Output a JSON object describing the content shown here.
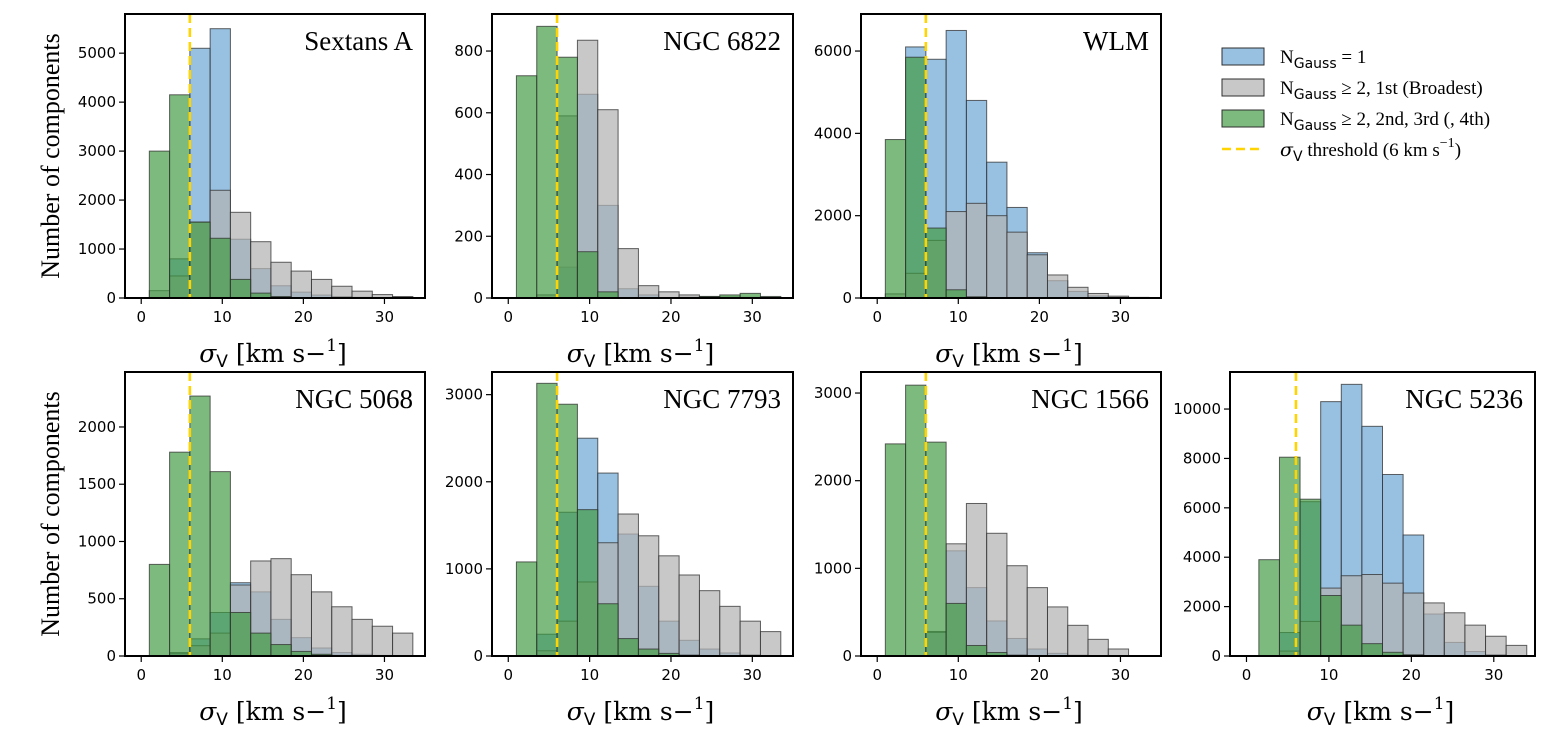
{
  "chart_data": {
    "type": "bar",
    "bin_width": 2.5,
    "xlim": [
      -2,
      35
    ],
    "xticks": [
      0,
      10,
      20,
      30
    ],
    "threshold": 6,
    "ylabel": "Number of components",
    "xlabel": "σV [km s−1]",
    "legend": {
      "placement": "upper-right",
      "entries": [
        {
          "key": "single",
          "label": "NGauss = 1",
          "color": "#6fa8d6"
        },
        {
          "key": "broad",
          "label": "NGauss ≥  2, 1st (Broadest)",
          "color": "#b3b3b3"
        },
        {
          "key": "narrow",
          "label": "NGauss ≥  2, 2nd, 3rd (, 4th)",
          "color": "#3f9a3f"
        },
        {
          "key": "threshold",
          "label": "σV threshold (6 km s−1)",
          "color": "#ffd400"
        }
      ]
    },
    "panels": [
      {
        "title": "Sextans A",
        "x0": 1,
        "ylim": [
          0,
          5800
        ],
        "yticks": [
          0,
          1000,
          2000,
          3000,
          4000,
          5000
        ],
        "series": [
          {
            "key": "single",
            "values": [
              0,
              800,
              5100,
              5500,
              1200,
              600,
              250,
              120,
              60,
              30,
              15,
              10,
              5
            ]
          },
          {
            "key": "broad",
            "values": [
              150,
              450,
              1550,
              2200,
              1750,
              1150,
              730,
              550,
              380,
              240,
              140,
              70,
              30
            ]
          },
          {
            "key": "narrow",
            "values": [
              3000,
              4150,
              1550,
              1220,
              380,
              100,
              30,
              0,
              0,
              0,
              0,
              0,
              0
            ]
          }
        ]
      },
      {
        "title": "NGC 6822",
        "x0": 1,
        "ylim": [
          0,
          920
        ],
        "yticks": [
          0,
          200,
          400,
          600,
          800
        ],
        "series": [
          {
            "key": "single",
            "values": [
              0,
              0,
              100,
              660,
              300,
              30,
              10,
              0,
              0,
              0,
              0,
              0,
              0
            ]
          },
          {
            "key": "broad",
            "values": [
              0,
              10,
              590,
              835,
              610,
              160,
              40,
              20,
              10,
              5,
              3,
              2,
              1
            ]
          },
          {
            "key": "narrow",
            "values": [
              720,
              880,
              780,
              150,
              20,
              0,
              0,
              0,
              2,
              5,
              10,
              15,
              5
            ]
          }
        ]
      },
      {
        "title": "WLM",
        "x0": 1,
        "ylim": [
          0,
          6900
        ],
        "yticks": [
          0,
          2000,
          4000,
          6000
        ],
        "series": [
          {
            "key": "single",
            "values": [
              0,
              6100,
              5800,
              6500,
              4800,
              3300,
              2200,
              1100,
              420,
              160,
              50,
              15,
              5
            ]
          },
          {
            "key": "broad",
            "values": [
              100,
              600,
              1400,
              2100,
              2300,
              2000,
              1600,
              1050,
              560,
              260,
              110,
              45,
              15
            ]
          },
          {
            "key": "narrow",
            "values": [
              3850,
              5850,
              1700,
              200,
              30,
              0,
              0,
              0,
              0,
              0,
              0,
              0,
              0
            ]
          }
        ]
      },
      {
        "title": "NGC 5068",
        "x0": 1,
        "ylim": [
          0,
          2480
        ],
        "yticks": [
          0,
          500,
          1000,
          1500,
          2000
        ],
        "series": [
          {
            "key": "single",
            "values": [
              0,
              30,
              150,
              380,
              640,
              560,
              320,
              160,
              70,
              30,
              15,
              5,
              3
            ]
          },
          {
            "key": "broad",
            "values": [
              0,
              20,
              90,
              200,
              620,
              830,
              850,
              710,
              560,
              430,
              320,
              260,
              200
            ]
          },
          {
            "key": "narrow",
            "values": [
              800,
              1780,
              2270,
              1610,
              380,
              200,
              100,
              40,
              15,
              5,
              0,
              0,
              0
            ]
          }
        ]
      },
      {
        "title": "NGC 7793",
        "x0": 1,
        "ylim": [
          0,
          3260
        ],
        "yticks": [
          0,
          1000,
          2000,
          3000
        ],
        "series": [
          {
            "key": "single",
            "values": [
              0,
              250,
              1650,
              2500,
              2100,
              1400,
              800,
              400,
              180,
              80,
              35,
              15,
              5
            ]
          },
          {
            "key": "broad",
            "values": [
              0,
              60,
              400,
              850,
              1300,
              1630,
              1380,
              1150,
              930,
              750,
              570,
              400,
              280
            ]
          },
          {
            "key": "narrow",
            "values": [
              1080,
              3130,
              2890,
              1680,
              600,
              200,
              80,
              30,
              10,
              5,
              0,
              0,
              0
            ]
          }
        ]
      },
      {
        "title": "NGC 1566",
        "x0": 1,
        "ylim": [
          0,
          3240
        ],
        "yticks": [
          0,
          1000,
          2000,
          3000
        ],
        "series": [
          {
            "key": "single",
            "values": [
              0,
              0,
              280,
              1200,
              780,
              400,
              200,
              80,
              30,
              10,
              5,
              2,
              0
            ]
          },
          {
            "key": "broad",
            "values": [
              0,
              0,
              270,
              1280,
              1740,
              1400,
              1030,
              780,
              560,
              350,
              190,
              80,
              0
            ]
          },
          {
            "key": "narrow",
            "values": [
              2420,
              3090,
              2440,
              600,
              120,
              40,
              10,
              0,
              0,
              0,
              0,
              0,
              0
            ]
          }
        ]
      },
      {
        "title": "NGC 5236",
        "x0": 1.5,
        "ylim": [
          0,
          11500
        ],
        "yticks": [
          0,
          2000,
          4000,
          6000,
          8000,
          10000
        ],
        "series": [
          {
            "key": "single",
            "values": [
              0,
              950,
              6250,
              10300,
              11000,
              9300,
              7350,
              4900,
              1700,
              550,
              180,
              60,
              20
            ]
          },
          {
            "key": "broad",
            "values": [
              0,
              200,
              1400,
              2750,
              3250,
              3300,
              2950,
              2550,
              2150,
              1750,
              1250,
              800,
              430
            ]
          },
          {
            "key": "narrow",
            "values": [
              3900,
              8050,
              6350,
              2450,
              1250,
              500,
              150,
              50,
              15,
              5,
              0,
              0,
              0
            ]
          }
        ]
      }
    ]
  }
}
